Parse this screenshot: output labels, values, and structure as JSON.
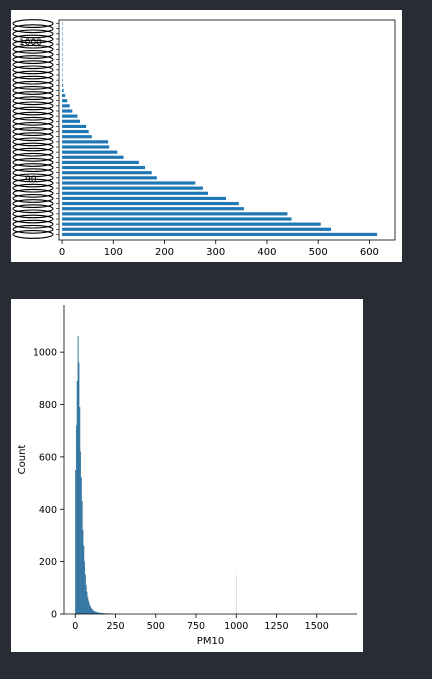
{
  "colors": {
    "bar": "#1f77b4",
    "hist": "#3274a1",
    "background": "#282c34",
    "panel": "#ffffff"
  },
  "chart_data": [
    {
      "type": "bar",
      "orientation": "horizontal",
      "title": "",
      "xlabel": "",
      "ylabel": "",
      "xlim": [
        -6,
        650
      ],
      "xticks": [
        0,
        100,
        200,
        300,
        400,
        500,
        600
      ],
      "grid": false,
      "legend": "none",
      "visible_ytick_labels": [
        "1000",
        "90"
      ],
      "values": [
        615,
        525,
        505,
        448,
        440,
        355,
        345,
        320,
        285,
        275,
        260,
        185,
        175,
        162,
        150,
        120,
        108,
        92,
        90,
        58,
        52,
        47,
        35,
        30,
        20,
        15,
        10,
        6,
        3,
        2,
        1,
        1,
        1,
        1,
        1,
        1,
        1,
        1,
        1,
        1,
        1,
        1
      ]
    },
    {
      "type": "bar",
      "subtype": "histogram",
      "title": "",
      "xlabel": "PM10",
      "ylabel": "Count",
      "xlim": [
        -70,
        1750
      ],
      "ylim": [
        0,
        1180
      ],
      "xticks": [
        0,
        250,
        500,
        750,
        1000,
        1250,
        1500
      ],
      "yticks": [
        0,
        200,
        400,
        600,
        800,
        1000
      ],
      "grid": false,
      "legend": "none",
      "bin_width": 5,
      "bin_start": 0,
      "counts": [
        550,
        720,
        890,
        1060,
        960,
        790,
        620,
        520,
        430,
        320,
        260,
        200,
        150,
        110,
        85,
        65,
        50,
        40,
        30,
        25,
        20,
        16,
        13,
        11,
        9,
        8,
        7,
        6,
        5,
        5,
        4,
        4,
        3,
        3,
        3,
        2,
        2,
        2,
        2,
        2,
        1,
        1,
        1,
        1,
        1,
        1,
        1
      ],
      "outlier_bins": [
        {
          "x": 1000,
          "count": 150
        }
      ]
    }
  ]
}
